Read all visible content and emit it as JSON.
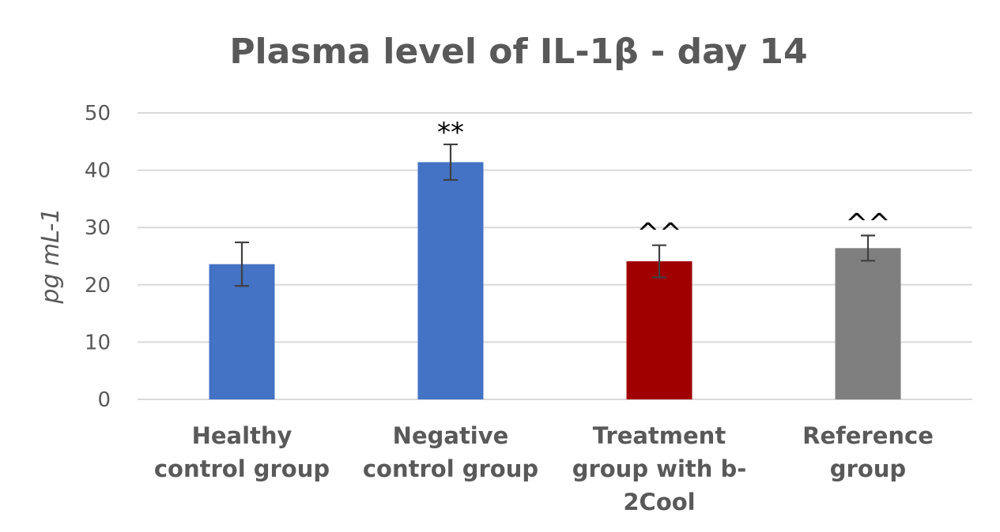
{
  "chart_data": {
    "type": "bar",
    "title": "Plasma level of IL-1β - day 14",
    "ylabel": "pg mL-1",
    "xlabel": "",
    "ylim": [
      0,
      50
    ],
    "yticks": [
      0,
      10,
      20,
      30,
      40,
      50
    ],
    "grid": true,
    "legend": "none",
    "categories": [
      [
        "Healthy",
        "control group"
      ],
      [
        "Negative",
        "control group"
      ],
      [
        "Treatment",
        "group with b-",
        "2Cool"
      ],
      [
        "Reference",
        "group"
      ]
    ],
    "values": [
      23.6,
      41.4,
      24.1,
      26.4
    ],
    "error": [
      3.8,
      3.1,
      2.8,
      2.2
    ],
    "annotations": [
      "",
      "**",
      "^^",
      "^^"
    ],
    "colors": [
      "#4472c4",
      "#4472c4",
      "#a00000",
      "#7f7f7f"
    ]
  }
}
